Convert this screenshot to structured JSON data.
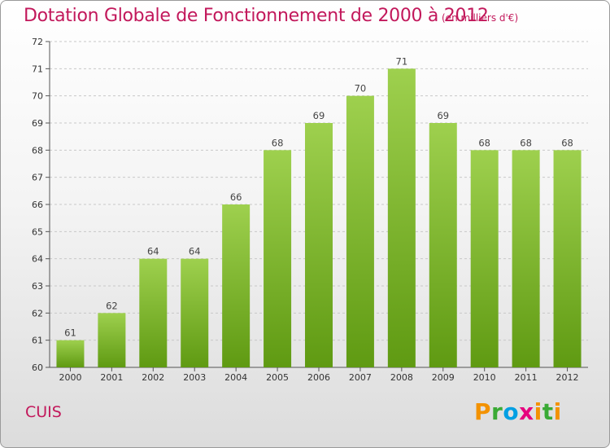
{
  "chart_data": {
    "type": "bar",
    "title": "Dotation Globale de Fonctionnement de 2000 à 2012",
    "subtitle": "(en milliers d'€)",
    "xlabel": "",
    "ylabel": "",
    "ylim": [
      60,
      72
    ],
    "yticks": [
      60,
      61,
      62,
      63,
      64,
      65,
      66,
      67,
      68,
      69,
      70,
      71,
      72
    ],
    "grid": true,
    "categories": [
      "2000",
      "2001",
      "2002",
      "2003",
      "2004",
      "2005",
      "2006",
      "2007",
      "2008",
      "2009",
      "2010",
      "2011",
      "2012"
    ],
    "values": [
      61,
      62,
      64,
      64,
      66,
      68,
      69,
      70,
      71,
      69,
      68,
      68,
      68
    ],
    "bar_color_top": "#9ed04e",
    "bar_color_bottom": "#5f9a12",
    "title_color": "#c2185b"
  },
  "footer": {
    "city": "CUIS",
    "brand_letters": [
      "P",
      "r",
      "o",
      "x",
      "i",
      "t",
      "i"
    ]
  }
}
